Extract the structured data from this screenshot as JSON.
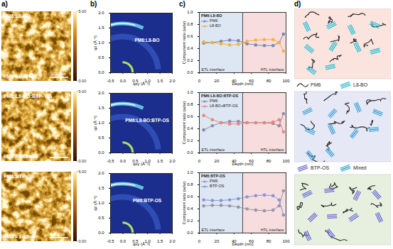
{
  "panel_labels": [
    "a)",
    "b)",
    "c)",
    "d)"
  ],
  "afm": {
    "colorbar": {
      "range": [
        0,
        5
      ],
      "ticks": [
        {
          "value": 5,
          "label": "5.00"
        },
        {
          "value": 0,
          "label": "0.00"
        }
      ]
    },
    "images": [
      {
        "label": "PM6:L8-BO",
        "rms": "RMS = 0.92 nm",
        "scale_bar": "1000 nm"
      },
      {
        "label": "PM6:L8-BO:BTP- OS",
        "rms": "RMS = 0.96 nm",
        "scale_bar": "400 nm"
      },
      {
        "label": "PM6:BTP-OS",
        "rms": "RMS = 1.13nm",
        "scale_bar": "400 nm"
      }
    ]
  },
  "giwaxs": {
    "labels": [
      "PM6:L8-BO",
      "PM6:L8-BO:BTP-OS",
      "PM6:BTP-OS"
    ],
    "xlabel": "qxy (Å⁻¹)",
    "ylabel": "qz (Å⁻¹)",
    "xlim": [
      -0.5,
      2.0
    ],
    "xticks": [
      -0.5,
      {
        "value": 0,
        "label": "0.0"
      },
      0.5,
      {
        "value": 1,
        "label": "1.0"
      },
      1.5,
      {
        "value": 2,
        "label": "2.0"
      }
    ],
    "ylim": [
      0,
      2.0
    ],
    "yticks": [
      {
        "value": 0,
        "label": "0.0"
      },
      0.5,
      {
        "value": 1,
        "label": "1.0"
      },
      1.5,
      {
        "value": 2,
        "label": "2.0"
      }
    ]
  },
  "chart_data": [
    {
      "type": "line",
      "title": "PM6:L8-BO",
      "xlabel": "Depth (nm)",
      "ylabel": "Component ratio (w/w)",
      "x": [
        5,
        15,
        25,
        35,
        45,
        55,
        65,
        75,
        85,
        92,
        97
      ],
      "series": [
        {
          "name": "PM6",
          "color": "#7e86b3",
          "marker": "circle",
          "line_style": "solid",
          "values": [
            0.49,
            0.5,
            0.52,
            0.54,
            0.53,
            0.48,
            0.46,
            0.45,
            0.45,
            0.5,
            0.64
          ]
        },
        {
          "name": "L8-BO",
          "color": "#f3b33d",
          "marker": "circle",
          "line_style": "solid",
          "values": [
            0.51,
            0.5,
            0.48,
            0.46,
            0.47,
            0.52,
            0.54,
            0.55,
            0.55,
            0.5,
            0.36
          ]
        }
      ],
      "xlim": [
        0,
        100
      ],
      "xticks": [
        0,
        20,
        40,
        60,
        80,
        100
      ],
      "ylim": [
        0,
        1
      ],
      "yticks": [
        {
          "value": 0,
          "label": "0.0"
        },
        0.2,
        0.4,
        0.6,
        0.8,
        {
          "value": 1,
          "label": "1.0"
        }
      ],
      "legend": "top-left",
      "annotations": [
        "ETL interface",
        "HTL interface"
      ],
      "shaded_regions": [
        {
          "from": 0,
          "to": 50,
          "color": "#dde7f3"
        },
        {
          "from": 50,
          "to": 100,
          "color": "#f7dddd"
        }
      ]
    },
    {
      "type": "line",
      "title": "PM6:L8-BO:BTP-OS",
      "xlabel": "Depth (nm)",
      "ylabel": "Component ratio (w/w)",
      "x": [
        5,
        15,
        25,
        35,
        45,
        55,
        65,
        75,
        85,
        92,
        97
      ],
      "series": [
        {
          "name": "PM6",
          "color": "#8d8ba6",
          "marker": "circle",
          "line_style": "solid",
          "values": [
            0.38,
            0.45,
            0.5,
            0.52,
            0.52,
            0.5,
            0.5,
            0.5,
            0.49,
            0.45,
            0.65
          ]
        },
        {
          "name": "L8-BO+BTP-OS",
          "color": "#e8877e",
          "marker": "circle",
          "line_style": "solid",
          "values": [
            0.62,
            0.55,
            0.5,
            0.48,
            0.48,
            0.5,
            0.5,
            0.5,
            0.51,
            0.55,
            0.35
          ]
        }
      ],
      "xlim": [
        0,
        100
      ],
      "xticks": [
        0,
        20,
        40,
        60,
        80,
        100
      ],
      "ylim": [
        0,
        1
      ],
      "yticks": [
        {
          "value": 0,
          "label": "0.0"
        },
        0.2,
        0.4,
        0.6,
        0.8,
        {
          "value": 1,
          "label": "1.0"
        }
      ],
      "legend": "top-left",
      "annotations": [
        "ETL interface",
        "HTL interface"
      ],
      "shaded_regions": [
        {
          "from": 0,
          "to": 50,
          "color": "#dde7f3"
        },
        {
          "from": 50,
          "to": 100,
          "color": "#f7dddd"
        }
      ]
    },
    {
      "type": "line",
      "title": "PM6:BTP-OS",
      "xlabel": "Depth (nm)",
      "ylabel": "Component ratio (w/w)",
      "x": [
        5,
        15,
        25,
        35,
        45,
        55,
        65,
        75,
        85,
        92,
        97
      ],
      "series": [
        {
          "name": "PM6",
          "color": "#9a96a8",
          "marker": "circle",
          "line_style": "solid",
          "values": [
            0.45,
            0.46,
            0.46,
            0.45,
            0.43,
            0.4,
            0.38,
            0.37,
            0.38,
            0.45,
            0.7
          ]
        },
        {
          "name": "BTP-OS",
          "color": "#8797d8",
          "marker": "circle",
          "line_style": "solid",
          "values": [
            0.55,
            0.54,
            0.54,
            0.55,
            0.57,
            0.6,
            0.62,
            0.63,
            0.62,
            0.55,
            0.3
          ]
        }
      ],
      "xlim": [
        0,
        100
      ],
      "xticks": [
        0,
        20,
        40,
        60,
        80,
        100
      ],
      "ylim": [
        0,
        1
      ],
      "yticks": [
        {
          "value": 0,
          "label": "0.0"
        },
        0.2,
        0.4,
        0.6,
        0.8,
        {
          "value": 1,
          "label": "1.0"
        }
      ],
      "legend": "top-left",
      "annotations": [
        "ETL interface",
        "HTL interface"
      ],
      "shaded_regions": [
        {
          "from": 0,
          "to": 50,
          "color": "#dde7f3"
        },
        {
          "from": 50,
          "to": 100,
          "color": "#f7dddd"
        }
      ]
    }
  ],
  "schematic": {
    "legend": [
      {
        "name": "PM6",
        "color": "#222222"
      },
      {
        "name": "L8-BO",
        "color": "#29c0d4"
      },
      {
        "name": "BTP-OS",
        "color": "#6d6fd6"
      },
      {
        "name": "Mixed",
        "colors": [
          "#29c0d4",
          "#6d6fd6"
        ]
      }
    ]
  }
}
